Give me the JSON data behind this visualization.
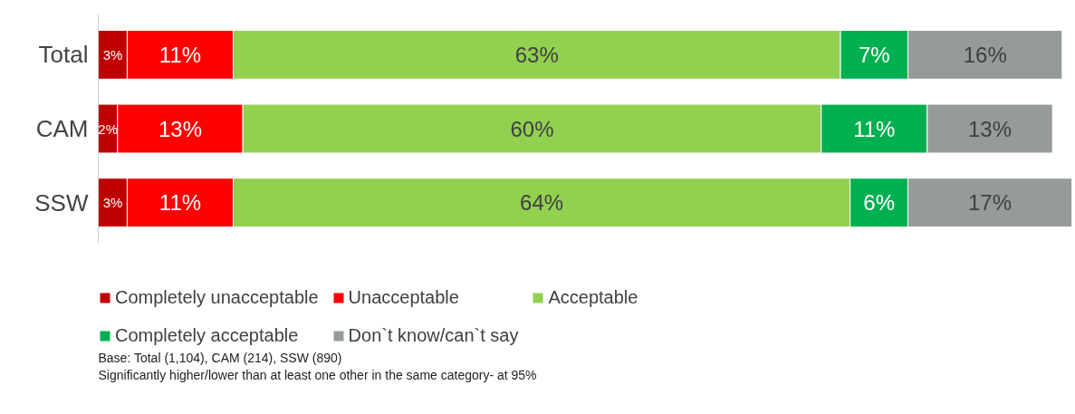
{
  "chart_data": {
    "type": "bar",
    "orientation": "horizontal",
    "stacked": true,
    "grid": false,
    "legend": "bottom left",
    "categories": [
      "Total",
      "CAM",
      "SSW"
    ],
    "series": [
      {
        "name": "Completely unacceptable",
        "color": "#c00000",
        "values": [
          3,
          2,
          3
        ],
        "value_labels": [
          "3%",
          "2%",
          "3%"
        ]
      },
      {
        "name": "Unacceptable",
        "color": "#ff0000",
        "values": [
          11,
          13,
          11
        ],
        "value_labels": [
          "11%",
          "13%",
          "11%"
        ]
      },
      {
        "name": "Acceptable",
        "color": "#92d050",
        "values": [
          63,
          60,
          64
        ],
        "value_labels": [
          "63%",
          "60%",
          "64%"
        ]
      },
      {
        "name": "Completely acceptable",
        "color": "#00b050",
        "values": [
          7,
          11,
          6
        ],
        "value_labels": [
          "7%",
          "11%",
          "6%"
        ]
      },
      {
        "name": "Don`t know/can`t say",
        "color": "#969a9a",
        "values": [
          16,
          13,
          17
        ],
        "value_labels": [
          "16%",
          "13%",
          "17%"
        ]
      }
    ],
    "annotations": [
      "Base: Total (1,104), CAM (214), SSW (890)",
      "Significantly higher/lower than at least one other in the same category- at 95%"
    ]
  }
}
